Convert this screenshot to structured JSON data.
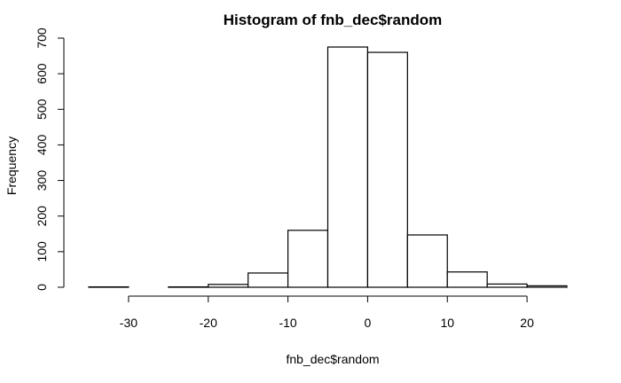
{
  "chart_data": {
    "type": "bar",
    "title": "Histogram of fnb_dec$random",
    "xlabel": "fnb_dec$random",
    "ylabel": "Frequency",
    "bin_edges": [
      -35,
      -30,
      -25,
      -20,
      -15,
      -10,
      -5,
      0,
      5,
      10,
      15,
      20,
      25
    ],
    "values": [
      1,
      0,
      1,
      8,
      40,
      160,
      675,
      660,
      147,
      43,
      9,
      4
    ],
    "xlim": [
      -35,
      25
    ],
    "ylim": [
      0,
      700
    ],
    "x_ticks": [
      -30,
      -20,
      -10,
      0,
      10,
      20
    ],
    "y_ticks": [
      0,
      100,
      200,
      300,
      400,
      500,
      600,
      700
    ],
    "grid": false,
    "bar_fill": "#ffffff",
    "bar_stroke": "#000000"
  }
}
